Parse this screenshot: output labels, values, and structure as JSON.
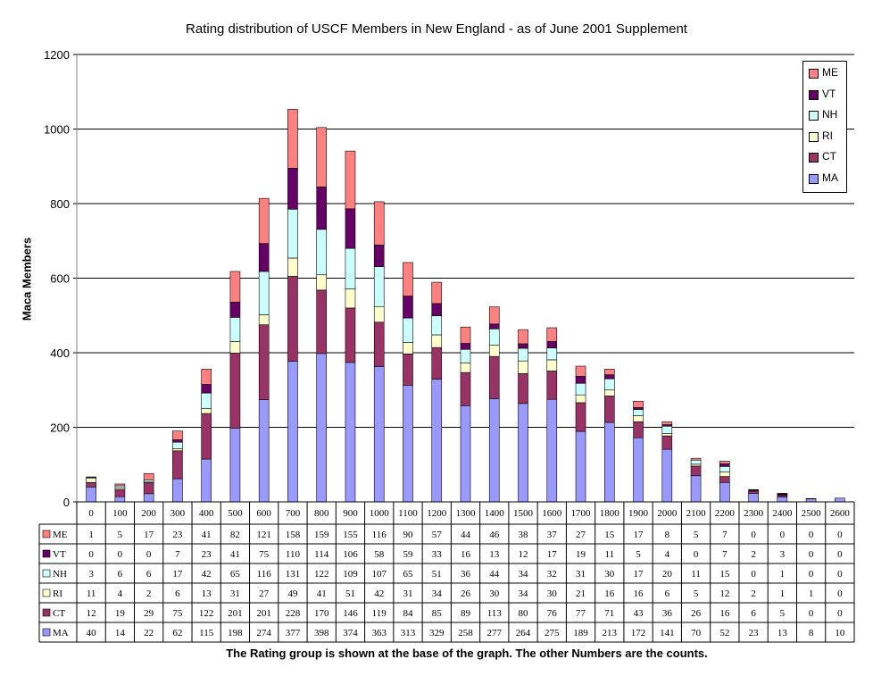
{
  "chart_data": {
    "type": "bar",
    "stacked": true,
    "title": "Rating distribution of USCF Members in New England - as of June 2001 Supplement",
    "ylabel": "Maca Members",
    "xlabel": "",
    "ylim": [
      0,
      1200
    ],
    "yticks": [
      0,
      200,
      400,
      600,
      800,
      1000,
      1200
    ],
    "grid": true,
    "legend_position": "top-right",
    "categories": [
      "0",
      "100",
      "200",
      "300",
      "400",
      "500",
      "600",
      "700",
      "800",
      "900",
      "1000",
      "1100",
      "1200",
      "1300",
      "1400",
      "1500",
      "1600",
      "1700",
      "1800",
      "1900",
      "2000",
      "2100",
      "2200",
      "2300",
      "2400",
      "2500",
      "2600"
    ],
    "series": [
      {
        "name": "MA",
        "color": "#9999FF",
        "values": [
          40,
          14,
          22,
          62,
          115,
          198,
          274,
          377,
          398,
          374,
          363,
          313,
          329,
          258,
          277,
          264,
          275,
          189,
          213,
          172,
          141,
          70,
          52,
          23,
          13,
          8,
          10
        ]
      },
      {
        "name": "CT",
        "color": "#993366",
        "values": [
          12,
          19,
          29,
          75,
          122,
          201,
          201,
          228,
          170,
          146,
          119,
          84,
          85,
          89,
          113,
          80,
          76,
          77,
          71,
          43,
          36,
          26,
          16,
          6,
          5,
          0,
          0
        ]
      },
      {
        "name": "RI",
        "color": "#FFFFCC",
        "values": [
          11,
          4,
          2,
          6,
          13,
          31,
          27,
          49,
          41,
          51,
          42,
          31,
          34,
          26,
          30,
          34,
          30,
          21,
          16,
          16,
          6,
          5,
          12,
          2,
          1,
          1,
          0
        ]
      },
      {
        "name": "NH",
        "color": "#CCFFFF",
        "values": [
          3,
          6,
          6,
          17,
          42,
          65,
          116,
          131,
          122,
          109,
          107,
          65,
          51,
          36,
          44,
          34,
          32,
          31,
          30,
          17,
          20,
          11,
          15,
          0,
          1,
          0,
          0
        ]
      },
      {
        "name": "VT",
        "color": "#660066",
        "values": [
          0,
          0,
          0,
          7,
          23,
          41,
          75,
          110,
          114,
          106,
          58,
          59,
          33,
          16,
          13,
          12,
          17,
          19,
          11,
          5,
          4,
          0,
          7,
          2,
          3,
          0,
          0
        ]
      },
      {
        "name": "ME",
        "color": "#FF8080",
        "values": [
          1,
          5,
          17,
          23,
          41,
          82,
          121,
          158,
          159,
          155,
          116,
          90,
          57,
          44,
          46,
          38,
          37,
          27,
          15,
          17,
          8,
          5,
          7,
          0,
          0,
          0,
          0
        ]
      }
    ]
  },
  "legend_order": [
    "ME",
    "VT",
    "NH",
    "RI",
    "CT",
    "MA"
  ],
  "footnote": "The Rating group is shown at the base of the graph.  The other Numbers are the counts."
}
